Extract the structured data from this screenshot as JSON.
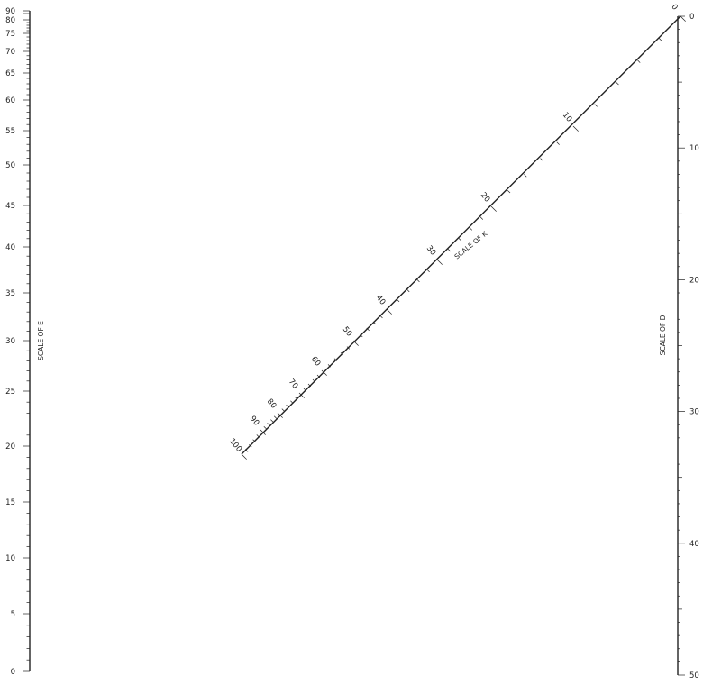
{
  "scale_e": {
    "title": "SCALE OF E",
    "labels": [
      "0",
      "5",
      "10",
      "15",
      "20",
      "25",
      "30",
      "35",
      "40",
      "45",
      "50",
      "55",
      "60",
      "65",
      "70",
      "75",
      "80",
      "90"
    ]
  },
  "scale_k": {
    "title": "SCALE OF K",
    "labels": [
      "0",
      "10",
      "20",
      "30",
      "40",
      "50",
      "60",
      "70",
      "80",
      "90",
      "100"
    ]
  },
  "scale_d": {
    "title": "SCALE OF D",
    "labels": [
      "0",
      "10",
      "20",
      "30",
      "40",
      "50"
    ]
  },
  "colors": {
    "ink": "#222222",
    "paper": "#ffffff"
  }
}
